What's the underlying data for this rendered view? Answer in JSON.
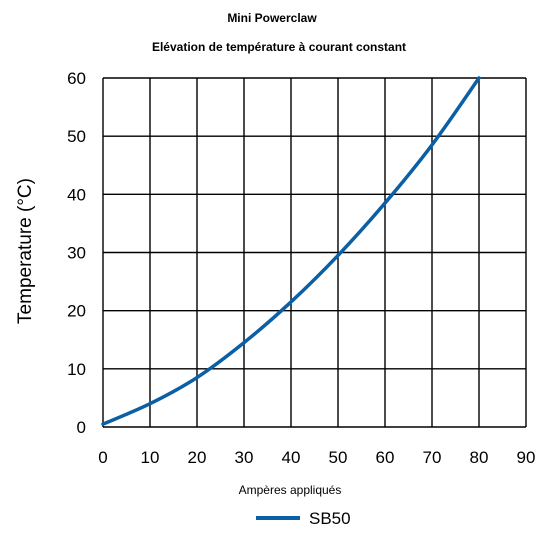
{
  "chart_data": {
    "type": "line",
    "title": "Mini Powerclaw",
    "subtitle": "Elévation de température à courant constant",
    "xlabel": "Ampères appliqués",
    "ylabel": "Temperature (°C)",
    "xlim": [
      0,
      90
    ],
    "ylim": [
      0,
      60
    ],
    "x_ticks": [
      "0",
      "10",
      "20",
      "30",
      "40",
      "50",
      "60",
      "70",
      "80",
      "90"
    ],
    "y_ticks": [
      "0",
      "10",
      "20",
      "30",
      "40",
      "50",
      "60"
    ],
    "grid": true,
    "legend_position": "bottom-center",
    "series": [
      {
        "name": "SB50",
        "color": "#0b5fa5",
        "x": [
          0,
          10,
          20,
          30,
          40,
          50,
          60,
          70,
          80
        ],
        "y": [
          0.5,
          4,
          8.5,
          14.5,
          21.5,
          29.5,
          38.5,
          48.5,
          60
        ]
      }
    ]
  },
  "colors": {
    "line": "#0b5fa5",
    "grid": "#000000",
    "background": "#ffffff"
  }
}
